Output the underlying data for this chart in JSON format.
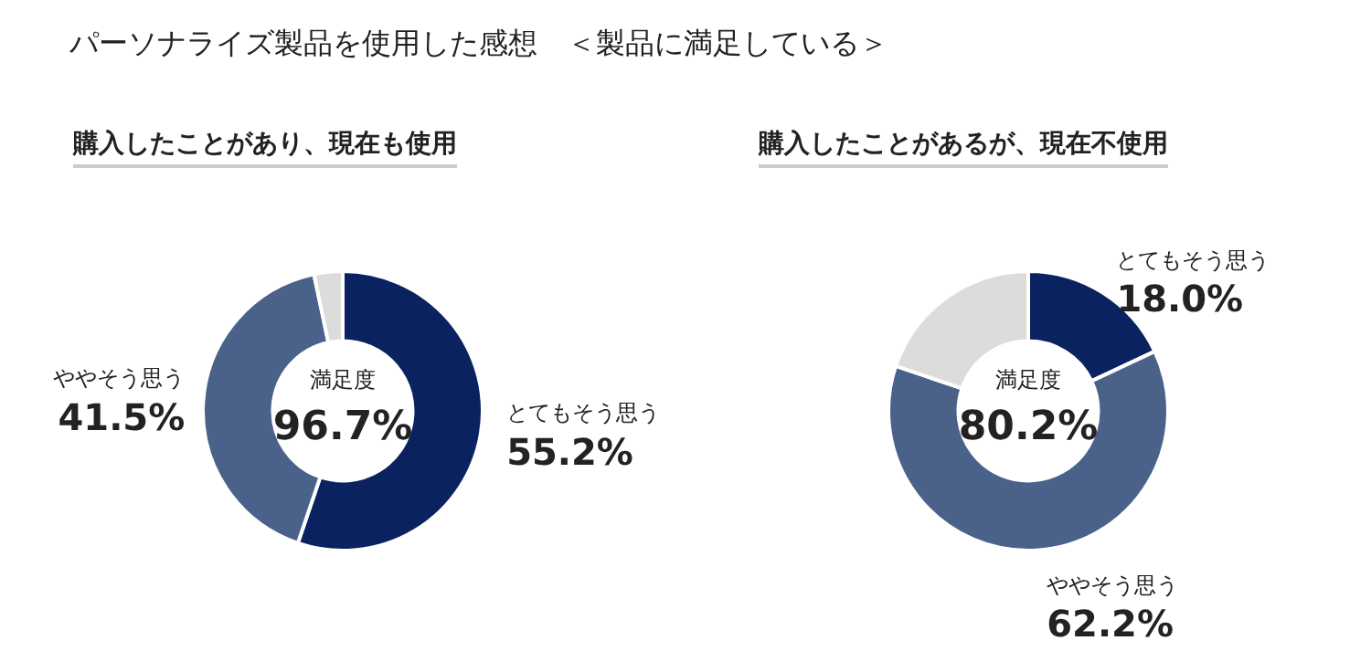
{
  "chart_data": [
    {
      "type": "donut",
      "title": "パーソナライズ製品を使用した感想　＜製品に満足している＞",
      "subtitle": "購入したことがあり、現在も使用",
      "categories": [
        "とてもそう思う",
        "ややそう思う",
        null
      ],
      "values": [
        55.2,
        41.5,
        3.3
      ],
      "colors": [
        "#0b2260",
        "#4a628a",
        "#dcdcdc"
      ],
      "value_labels": [
        "55.2%",
        "41.5%",
        null
      ],
      "annotations": [
        "満足度",
        "96.7%"
      ],
      "legend": false
    },
    {
      "type": "donut",
      "subtitle": "購入したことがあるが、現在不使用",
      "categories": [
        "とてもそう思う",
        "ややそう思う",
        null
      ],
      "values": [
        18.0,
        62.2,
        19.8
      ],
      "colors": [
        "#0b2260",
        "#4a628a",
        "#dcdcdc"
      ],
      "value_labels": [
        "18.0%",
        "62.2%",
        null
      ],
      "annotations": [
        "満足度",
        "80.2%"
      ],
      "legend": false
    }
  ]
}
